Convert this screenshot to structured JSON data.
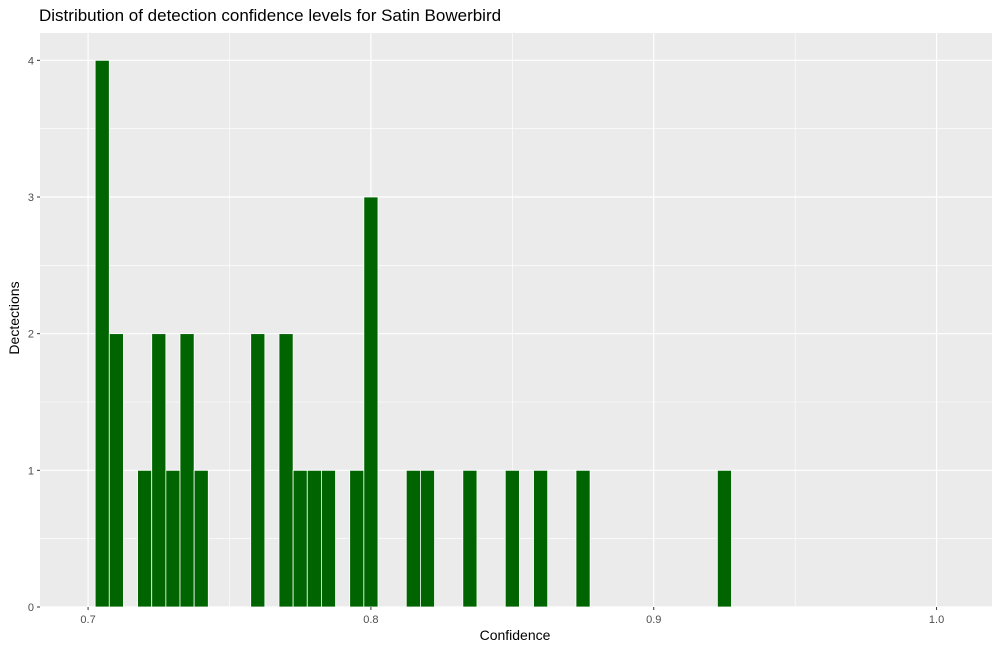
{
  "chart_data": {
    "type": "bar",
    "title": "Distribution of detection confidence levels for Satin Bowerbird",
    "xlabel": "Confidence",
    "ylabel": "Dectections",
    "xlim": [
      0.683,
      1.0196
    ],
    "ylim": [
      0,
      4.2
    ],
    "x_ticks": [
      0.7,
      0.8,
      0.9,
      1.0
    ],
    "x_tick_labels": [
      "0.7",
      "0.8",
      "0.9",
      "1.0"
    ],
    "y_ticks": [
      0,
      1,
      2,
      3,
      4
    ],
    "y_tick_labels": [
      "0",
      "1",
      "2",
      "3",
      "4"
    ],
    "bar_width": 0.005,
    "bar_color": "#006400",
    "panel_background": "#EBEBEB",
    "grid": true,
    "x": [
      0.705,
      0.71,
      0.72,
      0.725,
      0.73,
      0.735,
      0.74,
      0.76,
      0.77,
      0.775,
      0.78,
      0.785,
      0.795,
      0.8,
      0.815,
      0.82,
      0.835,
      0.85,
      0.86,
      0.875,
      0.925
    ],
    "values": [
      4,
      2,
      1,
      2,
      1,
      2,
      1,
      2,
      2,
      1,
      1,
      1,
      1,
      3,
      1,
      1,
      1,
      1,
      1,
      1,
      1
    ]
  }
}
